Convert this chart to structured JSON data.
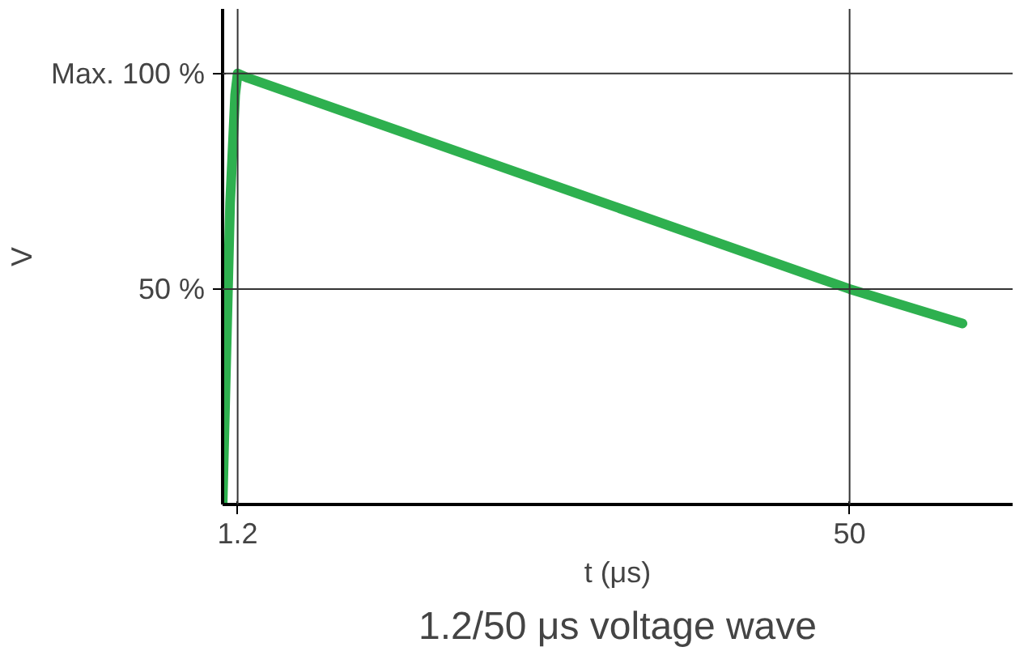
{
  "chart_data": {
    "type": "line",
    "title": "1.2/50 μs voltage wave",
    "xlabel": "t (μs)",
    "ylabel": "V",
    "x": [
      0,
      0.6,
      1.0,
      1.2,
      2.0,
      50,
      59
    ],
    "series": [
      {
        "color": "#2eb04f",
        "values": [
          0,
          70,
          95,
          100,
          99,
          50,
          42
        ]
      }
    ],
    "xlim": [
      0,
      63
    ],
    "ylim": [
      0,
      115
    ],
    "xticks": [
      1.2,
      50
    ],
    "yticks": [
      {
        "value": 50,
        "label": "50 %"
      },
      {
        "value": 100,
        "label": "Max. 100 %"
      }
    ],
    "ref_lines": [
      {
        "axis": "y",
        "value": 100,
        "color": "#333333"
      },
      {
        "axis": "y",
        "value": 50,
        "color": "#333333"
      },
      {
        "axis": "x",
        "value": 1.2,
        "color": "#333333"
      },
      {
        "axis": "x",
        "value": 50,
        "color": "#333333"
      }
    ],
    "grid": false,
    "marker": "none",
    "line_style": "solid"
  }
}
